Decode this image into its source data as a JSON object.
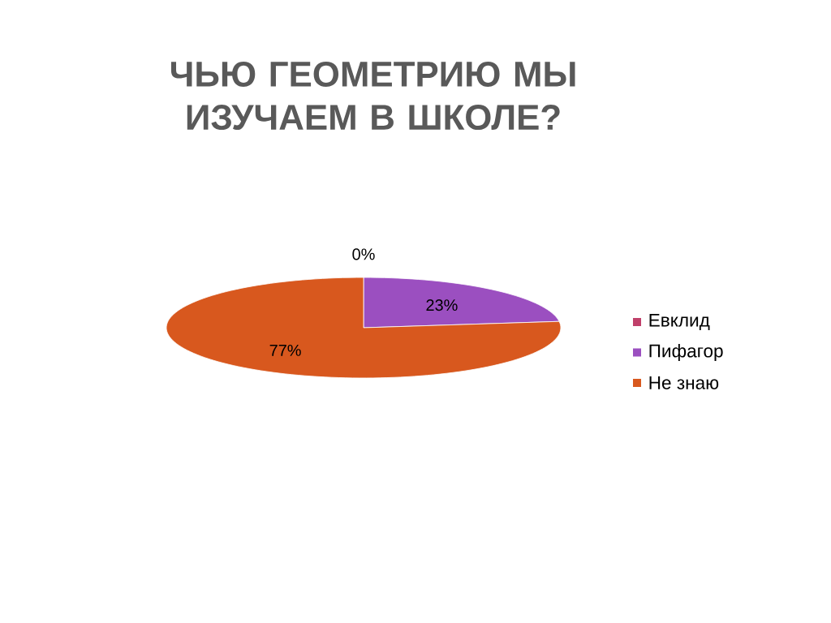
{
  "chart_data": {
    "type": "pie",
    "title": "ЧЬЮ ГЕОМЕТРИЮ МЫ ИЗУЧАЕМ В ШКОЛЕ?",
    "categories": [
      "Евклид",
      "Пифагор",
      "Не знаю"
    ],
    "values": [
      0,
      23,
      77
    ],
    "value_labels": [
      "0%",
      "23%",
      "77%"
    ],
    "colors": [
      "#c0406a",
      "#9b4fc0",
      "#d8581e"
    ],
    "legend": "right"
  }
}
